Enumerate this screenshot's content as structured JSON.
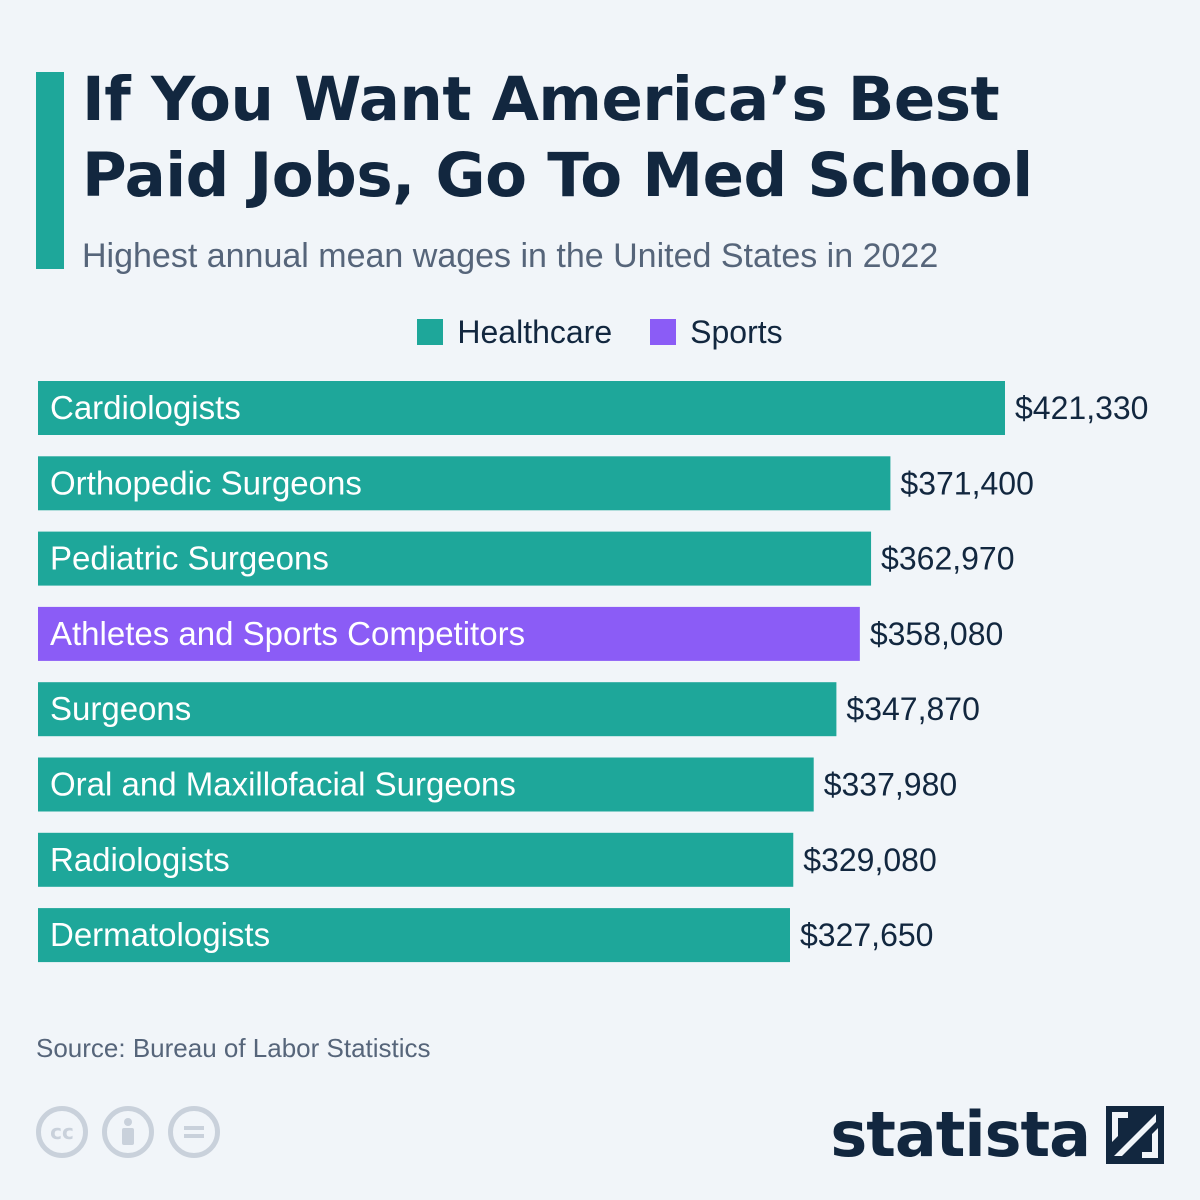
{
  "header": {
    "title_line1": "If You Want America’s Best",
    "title_line2": "Paid Jobs, Go To Med School",
    "subtitle": "Highest annual mean wages in the United States in 2022"
  },
  "legend": [
    {
      "label": "Healthcare",
      "color": "#1ea79a"
    },
    {
      "label": "Sports",
      "color": "#8b5cf6"
    }
  ],
  "chart_data": {
    "type": "bar",
    "orientation": "horizontal",
    "title": "If You Want America’s Best Paid Jobs, Go To Med School",
    "subtitle": "Highest annual mean wages in the United States in 2022",
    "xlabel": "",
    "ylabel": "",
    "xlim": [
      0,
      421330
    ],
    "categories": [
      "Cardiologists",
      "Orthopedic Surgeons",
      "Pediatric Surgeons",
      "Athletes and Sports Competitors",
      "Surgeons",
      "Oral and Maxillofacial Surgeons",
      "Radiologists",
      "Dermatologists"
    ],
    "values": [
      421330,
      371400,
      362970,
      358080,
      347870,
      337980,
      329080,
      327650
    ],
    "value_labels": [
      "$421,330",
      "$371,400",
      "$362,970",
      "$358,080",
      "$347,870",
      "$337,980",
      "$329,080",
      "$327,650"
    ],
    "groups": [
      "Healthcare",
      "Healthcare",
      "Healthcare",
      "Sports",
      "Healthcare",
      "Healthcare",
      "Healthcare",
      "Healthcare"
    ],
    "group_colors": {
      "Healthcare": "#1ea79a",
      "Sports": "#8b5cf6"
    },
    "grid": false,
    "legend_position": "top-center"
  },
  "footer": {
    "source": "Source: Bureau of Labor Statistics",
    "brand": "statista",
    "license_icons": [
      "cc-icon",
      "attribution-icon",
      "no-derivatives-icon"
    ]
  }
}
